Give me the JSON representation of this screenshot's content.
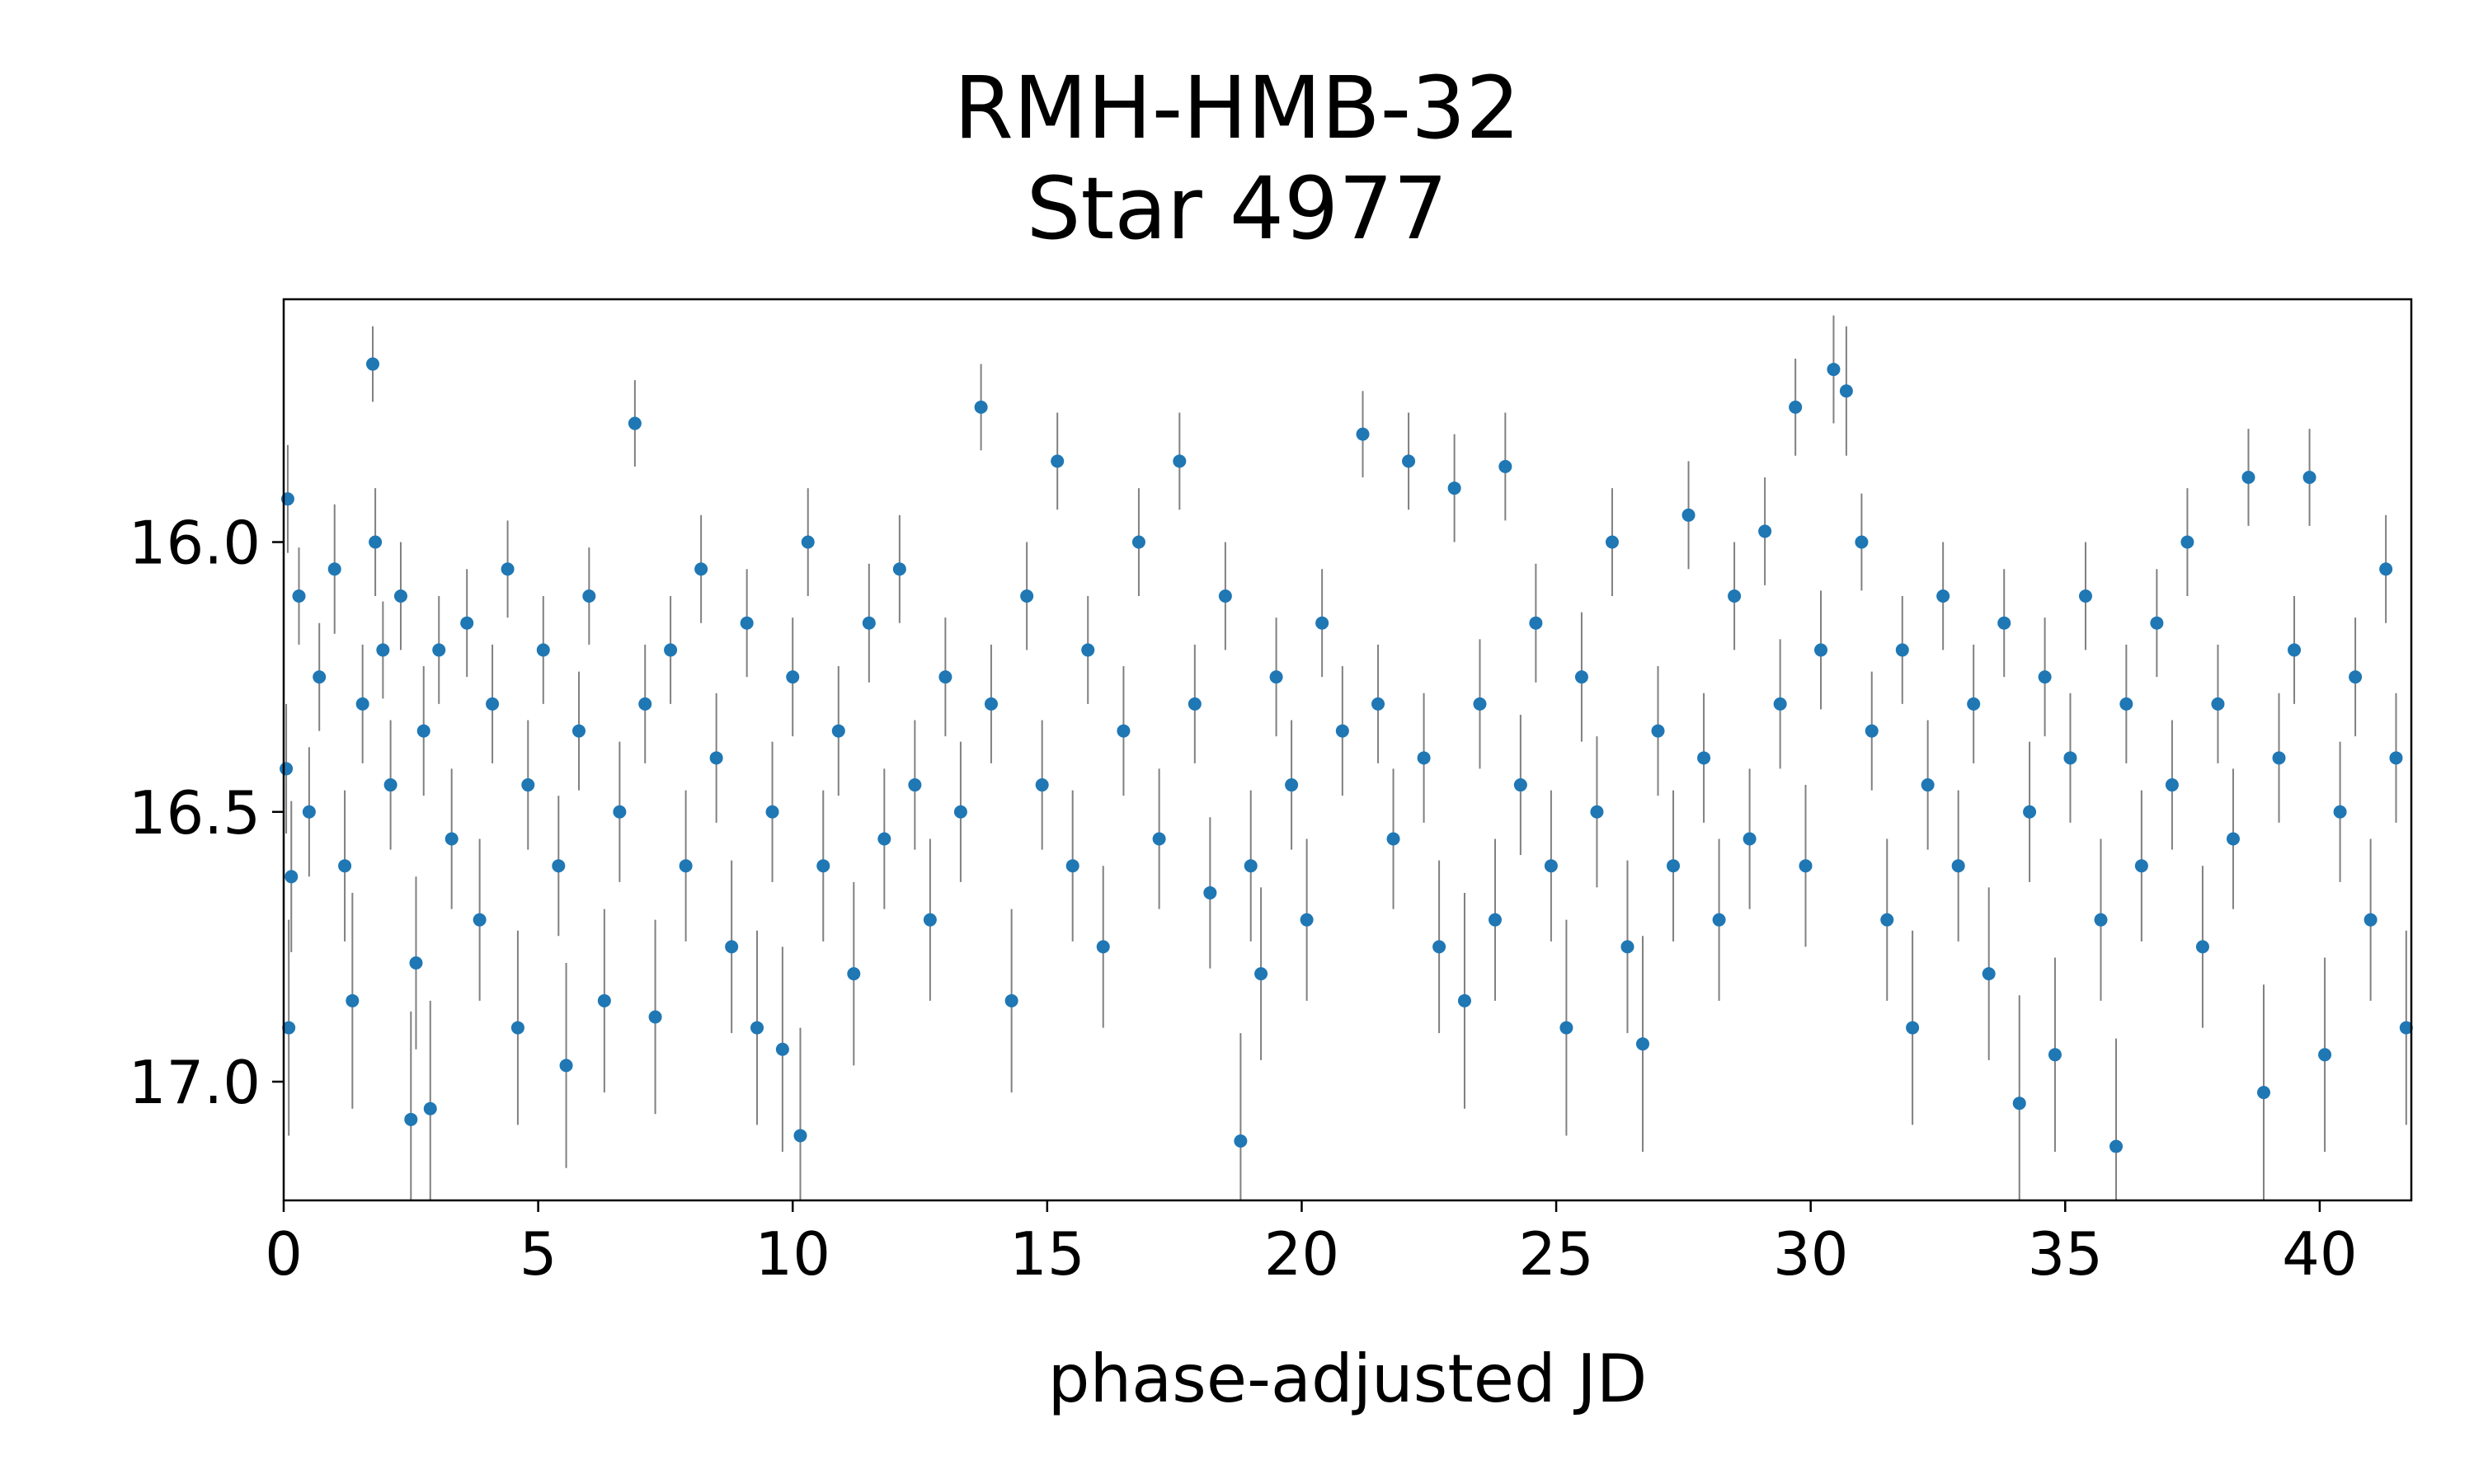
{
  "chart_data": {
    "type": "scatter",
    "title_line1": "RMH-HMB-32",
    "title_line2": "Star 4977",
    "xlabel": "phase-adjusted JD",
    "ylabel": "",
    "xlim": [
      0,
      41.8
    ],
    "ylim": [
      17.22,
      15.55
    ],
    "y_inverted": true,
    "grid": false,
    "x_ticks": [
      0,
      5,
      10,
      15,
      20,
      25,
      30,
      35,
      40
    ],
    "x_tick_labels": [
      "0",
      "5",
      "10",
      "15",
      "20",
      "25",
      "30",
      "35",
      "40"
    ],
    "y_ticks": [
      16.0,
      16.5,
      17.0
    ],
    "y_tick_labels": [
      "16.0",
      "16.5",
      "17.0"
    ],
    "marker_color": "#1f77b4",
    "errorbar_color": "#808080",
    "series": [
      {
        "points": [
          [
            0.05,
            16.42,
            0.12
          ],
          [
            0.08,
            15.92,
            0.1
          ],
          [
            0.1,
            16.9,
            0.2
          ],
          [
            0.15,
            16.62,
            0.14
          ],
          [
            0.3,
            16.1,
            0.09
          ],
          [
            0.5,
            16.5,
            0.12
          ],
          [
            0.7,
            16.25,
            0.1
          ],
          [
            1.0,
            16.05,
            0.12
          ],
          [
            1.2,
            16.6,
            0.14
          ],
          [
            1.35,
            16.85,
            0.2
          ],
          [
            1.55,
            16.3,
            0.11
          ],
          [
            1.75,
            15.67,
            0.07
          ],
          [
            1.8,
            16.0,
            0.1
          ],
          [
            1.95,
            16.2,
            0.09
          ],
          [
            2.1,
            16.45,
            0.12
          ],
          [
            2.3,
            16.1,
            0.1
          ],
          [
            2.5,
            17.07,
            0.2
          ],
          [
            2.6,
            16.78,
            0.16
          ],
          [
            2.75,
            16.35,
            0.12
          ],
          [
            2.88,
            17.05,
            0.2
          ],
          [
            3.05,
            16.2,
            0.1
          ],
          [
            3.3,
            16.55,
            0.13
          ],
          [
            3.6,
            16.15,
            0.1
          ],
          [
            3.85,
            16.7,
            0.15
          ],
          [
            4.1,
            16.3,
            0.11
          ],
          [
            4.4,
            16.05,
            0.09
          ],
          [
            4.6,
            16.9,
            0.18
          ],
          [
            4.8,
            16.45,
            0.12
          ],
          [
            5.1,
            16.2,
            0.1
          ],
          [
            5.4,
            16.6,
            0.13
          ],
          [
            5.55,
            16.97,
            0.19
          ],
          [
            5.8,
            16.35,
            0.11
          ],
          [
            6.0,
            16.1,
            0.09
          ],
          [
            6.3,
            16.85,
            0.17
          ],
          [
            6.6,
            16.5,
            0.13
          ],
          [
            6.9,
            15.78,
            0.08
          ],
          [
            7.1,
            16.3,
            0.11
          ],
          [
            7.3,
            16.88,
            0.18
          ],
          [
            7.6,
            16.2,
            0.1
          ],
          [
            7.9,
            16.6,
            0.14
          ],
          [
            8.2,
            16.05,
            0.1
          ],
          [
            8.5,
            16.4,
            0.12
          ],
          [
            8.8,
            16.75,
            0.16
          ],
          [
            9.1,
            16.15,
            0.1
          ],
          [
            9.3,
            16.9,
            0.18
          ],
          [
            9.6,
            16.5,
            0.13
          ],
          [
            9.8,
            16.94,
            0.19
          ],
          [
            10.0,
            16.25,
            0.11
          ],
          [
            10.15,
            17.1,
            0.2
          ],
          [
            10.3,
            16.0,
            0.1
          ],
          [
            10.6,
            16.6,
            0.14
          ],
          [
            10.9,
            16.35,
            0.12
          ],
          [
            11.2,
            16.8,
            0.17
          ],
          [
            11.5,
            16.15,
            0.11
          ],
          [
            11.8,
            16.55,
            0.13
          ],
          [
            12.1,
            16.05,
            0.1
          ],
          [
            12.4,
            16.45,
            0.12
          ],
          [
            12.7,
            16.7,
            0.15
          ],
          [
            13.0,
            16.25,
            0.11
          ],
          [
            13.3,
            16.5,
            0.13
          ],
          [
            13.7,
            15.75,
            0.08
          ],
          [
            13.9,
            16.3,
            0.11
          ],
          [
            14.3,
            16.85,
            0.17
          ],
          [
            14.6,
            16.1,
            0.1
          ],
          [
            14.9,
            16.45,
            0.12
          ],
          [
            15.2,
            15.85,
            0.09
          ],
          [
            15.5,
            16.6,
            0.14
          ],
          [
            15.8,
            16.2,
            0.1
          ],
          [
            16.1,
            16.75,
            0.15
          ],
          [
            16.5,
            16.35,
            0.12
          ],
          [
            16.8,
            16.0,
            0.1
          ],
          [
            17.2,
            16.55,
            0.13
          ],
          [
            17.6,
            15.85,
            0.09
          ],
          [
            17.9,
            16.3,
            0.11
          ],
          [
            18.2,
            16.65,
            0.14
          ],
          [
            18.5,
            16.1,
            0.1
          ],
          [
            18.8,
            17.11,
            0.2
          ],
          [
            19.0,
            16.6,
            0.14
          ],
          [
            19.2,
            16.8,
            0.16
          ],
          [
            19.5,
            16.25,
            0.11
          ],
          [
            19.8,
            16.45,
            0.12
          ],
          [
            20.1,
            16.7,
            0.15
          ],
          [
            20.4,
            16.15,
            0.1
          ],
          [
            20.8,
            16.35,
            0.12
          ],
          [
            21.2,
            15.8,
            0.08
          ],
          [
            21.5,
            16.3,
            0.11
          ],
          [
            21.8,
            16.55,
            0.13
          ],
          [
            22.1,
            15.85,
            0.09
          ],
          [
            22.4,
            16.4,
            0.12
          ],
          [
            22.7,
            16.75,
            0.16
          ],
          [
            23.0,
            15.9,
            0.1
          ],
          [
            23.2,
            16.85,
            0.2
          ],
          [
            23.5,
            16.3,
            0.12
          ],
          [
            23.8,
            16.7,
            0.15
          ],
          [
            24.0,
            15.86,
            0.1
          ],
          [
            24.3,
            16.45,
            0.13
          ],
          [
            24.6,
            16.15,
            0.11
          ],
          [
            24.9,
            16.6,
            0.14
          ],
          [
            25.2,
            16.9,
            0.2
          ],
          [
            25.5,
            16.25,
            0.12
          ],
          [
            25.8,
            16.5,
            0.14
          ],
          [
            26.1,
            16.0,
            0.1
          ],
          [
            26.4,
            16.75,
            0.16
          ],
          [
            26.7,
            16.93,
            0.2
          ],
          [
            27.0,
            16.35,
            0.12
          ],
          [
            27.3,
            16.6,
            0.14
          ],
          [
            27.6,
            15.95,
            0.1
          ],
          [
            27.9,
            16.4,
            0.12
          ],
          [
            28.2,
            16.7,
            0.15
          ],
          [
            28.5,
            16.1,
            0.1
          ],
          [
            28.8,
            16.55,
            0.13
          ],
          [
            29.1,
            15.98,
            0.1
          ],
          [
            29.4,
            16.3,
            0.12
          ],
          [
            29.7,
            15.75,
            0.09
          ],
          [
            29.9,
            16.6,
            0.15
          ],
          [
            30.2,
            16.2,
            0.11
          ],
          [
            30.45,
            15.68,
            0.1
          ],
          [
            30.7,
            15.72,
            0.12
          ],
          [
            31.0,
            16.0,
            0.09
          ],
          [
            31.2,
            16.35,
            0.11
          ],
          [
            31.5,
            16.7,
            0.15
          ],
          [
            31.8,
            16.2,
            0.1
          ],
          [
            32.0,
            16.9,
            0.18
          ],
          [
            32.3,
            16.45,
            0.12
          ],
          [
            32.6,
            16.1,
            0.1
          ],
          [
            32.9,
            16.6,
            0.14
          ],
          [
            33.2,
            16.3,
            0.11
          ],
          [
            33.5,
            16.8,
            0.16
          ],
          [
            33.8,
            16.15,
            0.1
          ],
          [
            34.1,
            17.04,
            0.2
          ],
          [
            34.3,
            16.5,
            0.13
          ],
          [
            34.6,
            16.25,
            0.11
          ],
          [
            34.8,
            16.95,
            0.18
          ],
          [
            35.1,
            16.4,
            0.12
          ],
          [
            35.4,
            16.1,
            0.1
          ],
          [
            35.7,
            16.7,
            0.15
          ],
          [
            36.0,
            17.12,
            0.2
          ],
          [
            36.2,
            16.3,
            0.11
          ],
          [
            36.5,
            16.6,
            0.14
          ],
          [
            36.8,
            16.15,
            0.1
          ],
          [
            37.1,
            16.45,
            0.12
          ],
          [
            37.4,
            16.0,
            0.1
          ],
          [
            37.7,
            16.75,
            0.15
          ],
          [
            38.0,
            16.3,
            0.11
          ],
          [
            38.3,
            16.55,
            0.13
          ],
          [
            38.6,
            15.88,
            0.09
          ],
          [
            38.9,
            17.02,
            0.2
          ],
          [
            39.2,
            16.4,
            0.12
          ],
          [
            39.5,
            16.2,
            0.1
          ],
          [
            39.8,
            15.88,
            0.09
          ],
          [
            40.1,
            16.95,
            0.18
          ],
          [
            40.4,
            16.5,
            0.13
          ],
          [
            40.7,
            16.25,
            0.11
          ],
          [
            41.0,
            16.7,
            0.15
          ],
          [
            41.3,
            16.05,
            0.1
          ],
          [
            41.5,
            16.4,
            0.12
          ],
          [
            41.7,
            16.9,
            0.18
          ]
        ]
      }
    ]
  }
}
